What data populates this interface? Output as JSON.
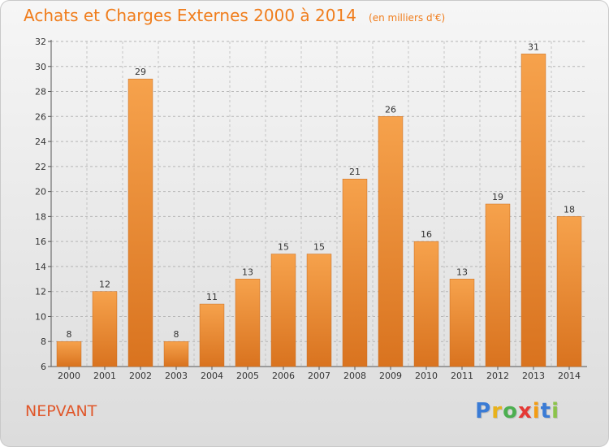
{
  "header": {
    "title": "Achats et Charges Externes 2000 à 2014",
    "unit": "(en milliers d'€)"
  },
  "footer": {
    "commune": "NEPVANT",
    "logo_letters": [
      "P",
      "r",
      "o",
      "x",
      "i",
      "t",
      "i"
    ],
    "logo_colors": [
      "#3a7bd5",
      "#e8b21c",
      "#4caf50",
      "#e53935",
      "#f39c12",
      "#3a7bd5",
      "#8bc34a"
    ]
  },
  "colors": {
    "bar_light": "#f6a24c",
    "bar_dark": "#d9731f",
    "accent": "#f07d1c"
  },
  "chart_data": {
    "type": "bar",
    "categories": [
      "2000",
      "2001",
      "2002",
      "2003",
      "2004",
      "2005",
      "2006",
      "2007",
      "2008",
      "2009",
      "2010",
      "2011",
      "2012",
      "2013",
      "2014"
    ],
    "values": [
      8,
      12,
      29,
      8,
      11,
      13,
      15,
      15,
      21,
      26,
      16,
      13,
      19,
      31,
      18
    ],
    "title": "Achats et Charges Externes 2000 à 2014",
    "xlabel": "",
    "ylabel": "",
    "ylim": [
      6,
      32
    ],
    "yticks": [
      6,
      8,
      10,
      12,
      14,
      16,
      18,
      20,
      22,
      24,
      26,
      28,
      30,
      32
    ],
    "grid": "horizontal dashed",
    "legend": "none"
  }
}
